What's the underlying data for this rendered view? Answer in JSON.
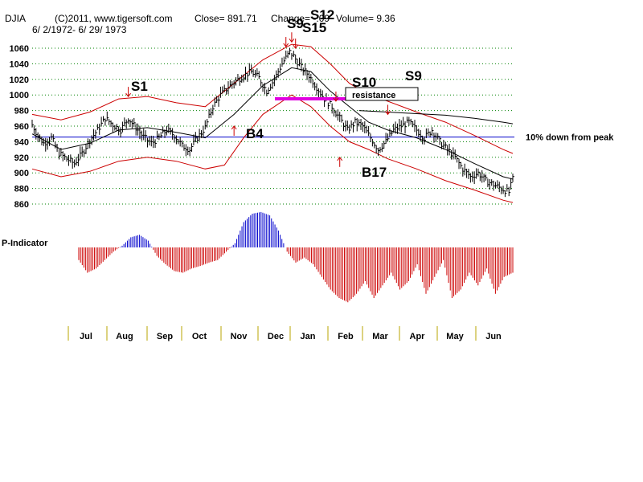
{
  "header": {
    "symbol": "DJIA",
    "copyright": "(C)2011, www.tigersoft.com",
    "close": "Close=  891.71",
    "change": "Change=  -.09",
    "volume": "Volume= 9.36",
    "date_range": "6/ 2/1972- 6/ 29/ 1973"
  },
  "colors": {
    "price_bars": "#000000",
    "band": "#cc0000",
    "ma": "#000000",
    "ma_long": "#000000",
    "peak_line": "#0000cc",
    "resistance": "#e000e0",
    "grid": "#008000",
    "indicator_pos": "#0000cc",
    "indicator_neg": "#cc0000",
    "arrow": "#cc0000"
  },
  "chart_data": [
    {
      "type": "line",
      "title": "DJIA",
      "y_ticks": [
        1060,
        1040,
        1020,
        1000,
        980,
        960,
        940,
        920,
        900,
        880,
        860
      ],
      "ylim": [
        860,
        1070
      ],
      "x_labels": [
        "Jul",
        "Aug",
        "Sep",
        "Oct",
        "Nov",
        "Dec",
        "Jan",
        "Feb",
        "Mar",
        "Apr",
        "May",
        "Jun"
      ],
      "grid": true,
      "close_points": [
        [
          0,
          962
        ],
        [
          3,
          948
        ],
        [
          6,
          938
        ],
        [
          10,
          945
        ],
        [
          14,
          925
        ],
        [
          18,
          918
        ],
        [
          22,
          912
        ],
        [
          26,
          925
        ],
        [
          30,
          942
        ],
        [
          34,
          955
        ],
        [
          38,
          970
        ],
        [
          42,
          962
        ],
        [
          46,
          955
        ],
        [
          50,
          970
        ],
        [
          54,
          958
        ],
        [
          58,
          946
        ],
        [
          62,
          938
        ],
        [
          66,
          945
        ],
        [
          70,
          955
        ],
        [
          74,
          948
        ],
        [
          78,
          935
        ],
        [
          82,
          930
        ],
        [
          86,
          945
        ],
        [
          90,
          958
        ],
        [
          94,
          985
        ],
        [
          98,
          1000
        ],
        [
          102,
          1010
        ],
        [
          106,
          1018
        ],
        [
          110,
          1025
        ],
        [
          114,
          1030
        ],
        [
          118,
          1022
        ],
        [
          122,
          1005
        ],
        [
          126,
          1020
        ],
        [
          130,
          1040
        ],
        [
          134,
          1055
        ],
        [
          136,
          1050
        ],
        [
          140,
          1035
        ],
        [
          144,
          1025
        ],
        [
          148,
          1010
        ],
        [
          152,
          995
        ],
        [
          156,
          985
        ],
        [
          160,
          970
        ],
        [
          164,
          955
        ],
        [
          168,
          965
        ],
        [
          172,
          960
        ],
        [
          176,
          945
        ],
        [
          180,
          930
        ],
        [
          184,
          940
        ],
        [
          188,
          955
        ],
        [
          192,
          960
        ],
        [
          196,
          965
        ],
        [
          200,
          955
        ],
        [
          204,
          945
        ],
        [
          208,
          955
        ],
        [
          212,
          940
        ],
        [
          216,
          930
        ],
        [
          220,
          920
        ],
        [
          224,
          905
        ],
        [
          228,
          895
        ],
        [
          232,
          900
        ],
        [
          236,
          890
        ],
        [
          240,
          885
        ],
        [
          244,
          880
        ],
        [
          248,
          875
        ],
        [
          250,
          892
        ]
      ],
      "upper_band": [
        [
          0,
          975
        ],
        [
          15,
          968
        ],
        [
          30,
          978
        ],
        [
          45,
          995
        ],
        [
          60,
          998
        ],
        [
          75,
          990
        ],
        [
          90,
          985
        ],
        [
          105,
          1015
        ],
        [
          120,
          1045
        ],
        [
          135,
          1065
        ],
        [
          145,
          1062
        ],
        [
          155,
          1040
        ],
        [
          165,
          1015
        ],
        [
          175,
          1000
        ],
        [
          185,
          992
        ],
        [
          200,
          978
        ],
        [
          215,
          965
        ],
        [
          230,
          948
        ],
        [
          245,
          930
        ],
        [
          250,
          925
        ]
      ],
      "lower_band": [
        [
          0,
          905
        ],
        [
          15,
          895
        ],
        [
          30,
          902
        ],
        [
          45,
          915
        ],
        [
          60,
          920
        ],
        [
          75,
          915
        ],
        [
          90,
          905
        ],
        [
          100,
          910
        ],
        [
          110,
          945
        ],
        [
          120,
          975
        ],
        [
          135,
          1000
        ],
        [
          145,
          985
        ],
        [
          155,
          960
        ],
        [
          165,
          940
        ],
        [
          175,
          930
        ],
        [
          185,
          918
        ],
        [
          200,
          905
        ],
        [
          215,
          890
        ],
        [
          230,
          878
        ],
        [
          245,
          865
        ],
        [
          250,
          862
        ]
      ],
      "moving_avg": [
        [
          0,
          950
        ],
        [
          15,
          930
        ],
        [
          30,
          938
        ],
        [
          45,
          955
        ],
        [
          60,
          958
        ],
        [
          75,
          952
        ],
        [
          90,
          945
        ],
        [
          105,
          975
        ],
        [
          120,
          1012
        ],
        [
          135,
          1035
        ],
        [
          145,
          1030
        ],
        [
          155,
          1005
        ],
        [
          165,
          985
        ],
        [
          175,
          965
        ],
        [
          185,
          955
        ],
        [
          200,
          945
        ],
        [
          215,
          930
        ],
        [
          230,
          912
        ],
        [
          245,
          895
        ],
        [
          250,
          892
        ]
      ],
      "long_avg": [
        [
          170,
          980
        ],
        [
          185,
          978
        ],
        [
          200,
          976
        ],
        [
          215,
          974
        ],
        [
          230,
          970
        ],
        [
          245,
          965
        ],
        [
          250,
          963
        ]
      ],
      "peak_line_label": "10% down from peak",
      "peak_line_value": 946,
      "resistance": {
        "label": "resistance",
        "value": 995
      },
      "signals": [
        {
          "label": "S1",
          "x": 50,
          "value": 998,
          "dir": "down"
        },
        {
          "label": "B4",
          "x": 105,
          "value": 960,
          "dir": "up"
        },
        {
          "label": "S9",
          "x": 132,
          "value": 1062,
          "dir": "down"
        },
        {
          "label": "S12",
          "x": 135,
          "value": 1068,
          "dir": "down"
        },
        {
          "label": "S15",
          "x": 137,
          "value": 1060,
          "dir": "down"
        },
        {
          "label": "S10",
          "x": 158,
          "value": 992,
          "dir": "down"
        },
        {
          "label": "B17",
          "x": 160,
          "value": 920,
          "dir": "up"
        },
        {
          "label": "S9",
          "x": 185,
          "value": 975,
          "dir": "down"
        }
      ]
    },
    {
      "type": "bar",
      "title": "P-Indicator",
      "baseline": 0,
      "points": [
        [
          0,
          -15
        ],
        [
          5,
          -30
        ],
        [
          10,
          -25
        ],
        [
          15,
          -15
        ],
        [
          20,
          -5
        ],
        [
          25,
          2
        ],
        [
          30,
          12
        ],
        [
          35,
          15
        ],
        [
          40,
          8
        ],
        [
          45,
          -10
        ],
        [
          50,
          -20
        ],
        [
          55,
          -28
        ],
        [
          60,
          -30
        ],
        [
          65,
          -25
        ],
        [
          70,
          -22
        ],
        [
          75,
          -18
        ],
        [
          80,
          -15
        ],
        [
          85,
          -5
        ],
        [
          90,
          5
        ],
        [
          95,
          30
        ],
        [
          100,
          40
        ],
        [
          105,
          42
        ],
        [
          110,
          38
        ],
        [
          115,
          20
        ],
        [
          120,
          -5
        ],
        [
          125,
          -18
        ],
        [
          130,
          -12
        ],
        [
          135,
          -20
        ],
        [
          140,
          -35
        ],
        [
          145,
          -50
        ],
        [
          150,
          -60
        ],
        [
          155,
          -65
        ],
        [
          160,
          -55
        ],
        [
          165,
          -40
        ],
        [
          170,
          -60
        ],
        [
          175,
          -45
        ],
        [
          180,
          -30
        ],
        [
          185,
          -50
        ],
        [
          190,
          -40
        ],
        [
          195,
          -20
        ],
        [
          200,
          -55
        ],
        [
          205,
          -35
        ],
        [
          210,
          -15
        ],
        [
          215,
          -60
        ],
        [
          220,
          -50
        ],
        [
          225,
          -30
        ],
        [
          230,
          -45
        ],
        [
          235,
          -25
        ],
        [
          240,
          -55
        ],
        [
          245,
          -35
        ],
        [
          250,
          -30
        ]
      ]
    }
  ]
}
